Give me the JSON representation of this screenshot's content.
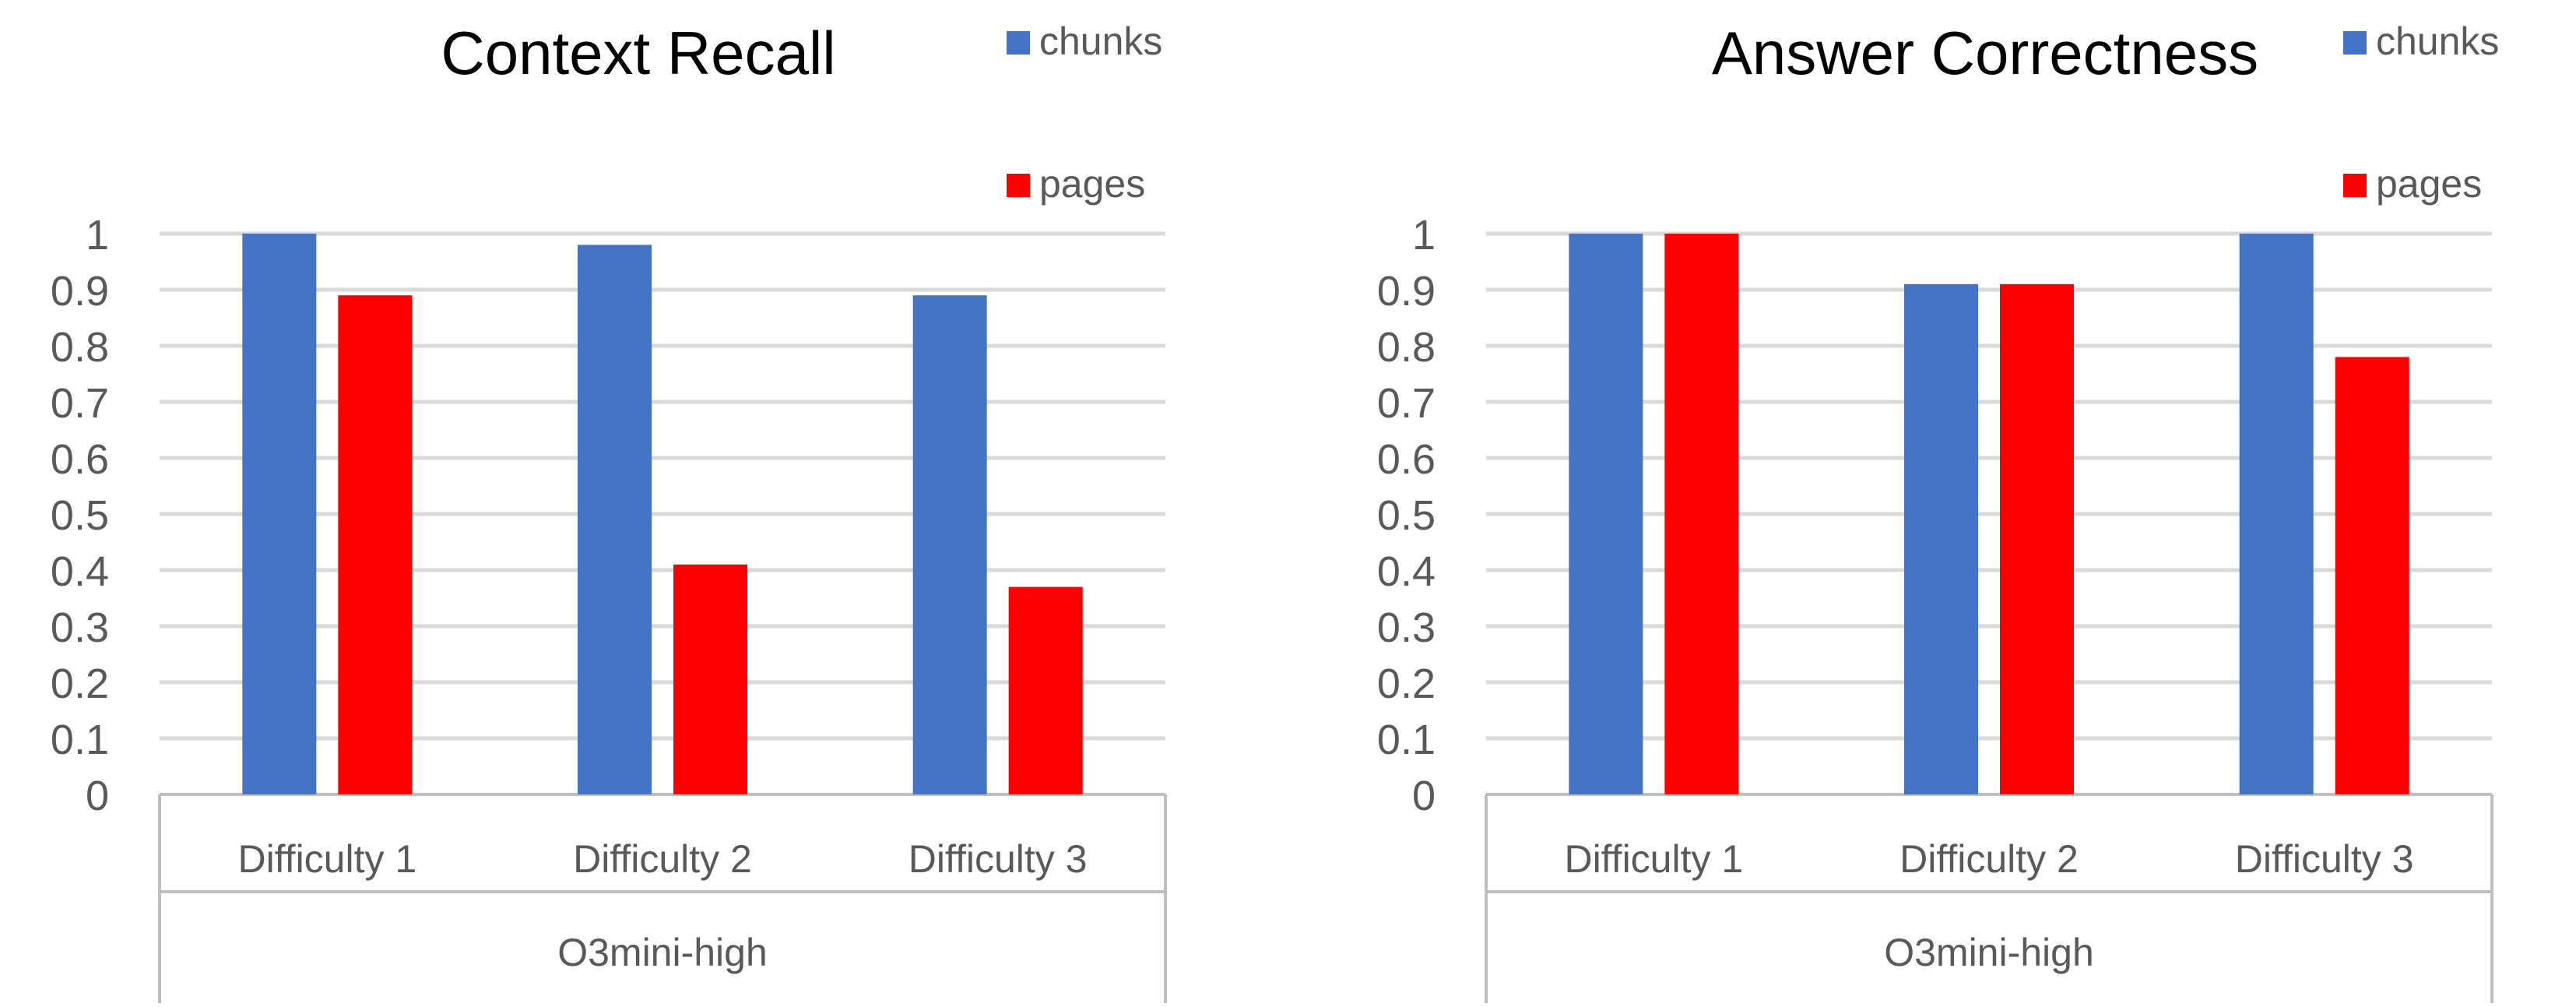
{
  "chart_data": [
    {
      "type": "bar",
      "title": "Context Recall",
      "categories": [
        "Difficulty 1",
        "Difficulty 2",
        "Difficulty 3"
      ],
      "group_label": "O3mini-high",
      "series": [
        {
          "name": "chunks",
          "color": "#4472C4",
          "values": [
            1.0,
            0.98,
            0.89
          ]
        },
        {
          "name": "pages",
          "color": "#FF0000",
          "values": [
            0.89,
            0.41,
            0.37
          ]
        }
      ],
      "yticks": [
        "0",
        "0.1",
        "0.2",
        "0.3",
        "0.4",
        "0.5",
        "0.6",
        "0.7",
        "0.8",
        "0.9",
        "1"
      ],
      "ylim": [
        0,
        1
      ],
      "grid": true,
      "legend": "top-right"
    },
    {
      "type": "bar",
      "title": "Answer Correctness",
      "categories": [
        "Difficulty 1",
        "Difficulty 2",
        "Difficulty 3"
      ],
      "group_label": "O3mini-high",
      "series": [
        {
          "name": "chunks",
          "color": "#4472C4",
          "values": [
            1.0,
            0.91,
            1.0
          ]
        },
        {
          "name": "pages",
          "color": "#FF0000",
          "values": [
            1.0,
            0.91,
            0.78
          ]
        }
      ],
      "yticks": [
        "0",
        "0.1",
        "0.2",
        "0.3",
        "0.4",
        "0.5",
        "0.6",
        "0.7",
        "0.8",
        "0.9",
        "1"
      ],
      "ylim": [
        0,
        1
      ],
      "grid": true,
      "legend": "top-right"
    }
  ]
}
